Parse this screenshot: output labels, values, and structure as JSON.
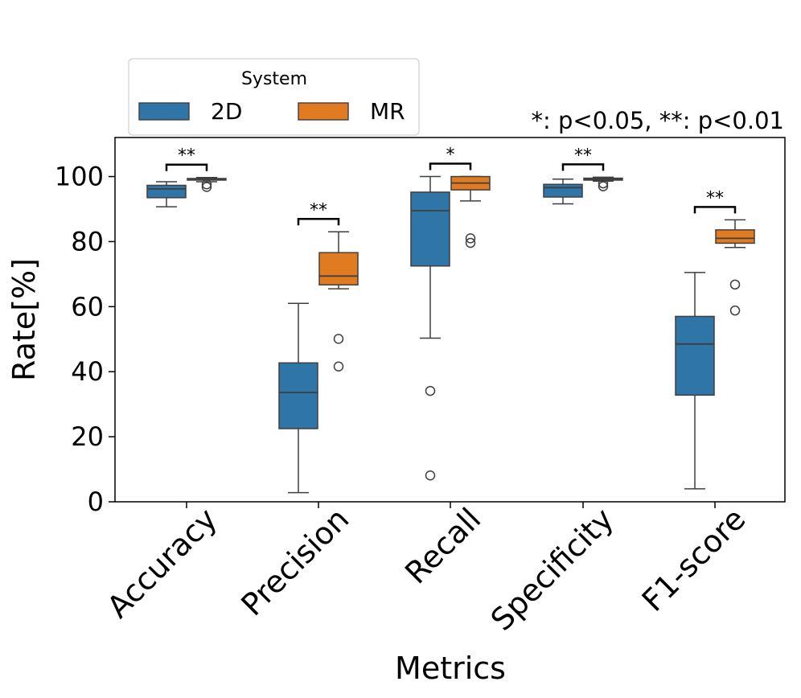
{
  "chart_data": {
    "type": "boxplot",
    "xlabel": "Metrics",
    "ylabel": "Rate[%]",
    "ylim": [
      0,
      112
    ],
    "yticks": [
      0,
      20,
      40,
      60,
      80,
      100
    ],
    "categories": [
      "Accuracy",
      "Precision",
      "Recall",
      "Specificity",
      "F1-score"
    ],
    "legend": {
      "title": "System",
      "placement": "top-left",
      "entries": [
        "2D",
        "MR"
      ]
    },
    "significance_note": "*: p<0.05, **: p<0.01",
    "significance": [
      "**",
      "**",
      "*",
      "**",
      "**"
    ],
    "series": [
      {
        "name": "2D",
        "color": "#2f75a8",
        "boxes": [
          {
            "whislo": 90.7,
            "q1": 93.5,
            "med": 96.2,
            "q3": 97.3,
            "whishi": 98.4,
            "fliers": []
          },
          {
            "whislo": 2.8,
            "q1": 22.5,
            "med": 33.6,
            "q3": 42.7,
            "whishi": 61.0,
            "fliers": []
          },
          {
            "whislo": 50.3,
            "q1": 72.5,
            "med": 89.5,
            "q3": 95.2,
            "whishi": 100.0,
            "fliers": [
              34.1,
              8.1
            ]
          },
          {
            "whislo": 91.6,
            "q1": 93.7,
            "med": 96.6,
            "q3": 97.6,
            "whishi": 99.2,
            "fliers": []
          },
          {
            "whislo": 4.0,
            "q1": 32.8,
            "med": 48.5,
            "q3": 57.0,
            "whishi": 70.5,
            "fliers": []
          }
        ]
      },
      {
        "name": "MR",
        "color": "#e07b22",
        "boxes": [
          {
            "whislo": 98.4,
            "q1": 98.9,
            "med": 99.2,
            "q3": 99.4,
            "whishi": 99.7,
            "fliers": [
              97.6,
              96.8
            ]
          },
          {
            "whislo": 65.5,
            "q1": 66.7,
            "med": 69.4,
            "q3": 76.6,
            "whishi": 83.0,
            "fliers": [
              50.1,
              41.6
            ]
          },
          {
            "whislo": 92.5,
            "q1": 95.9,
            "med": 98.0,
            "q3": 100.0,
            "whishi": 100.0,
            "fliers": [
              81.0,
              79.6
            ]
          },
          {
            "whislo": 98.6,
            "q1": 98.9,
            "med": 99.2,
            "q3": 99.5,
            "whishi": 99.8,
            "fliers": [
              97.9,
              97.0
            ]
          },
          {
            "whislo": 78.2,
            "q1": 79.5,
            "med": 81.0,
            "q3": 83.6,
            "whishi": 86.7,
            "fliers": [
              66.8,
              58.8
            ]
          }
        ]
      }
    ]
  }
}
